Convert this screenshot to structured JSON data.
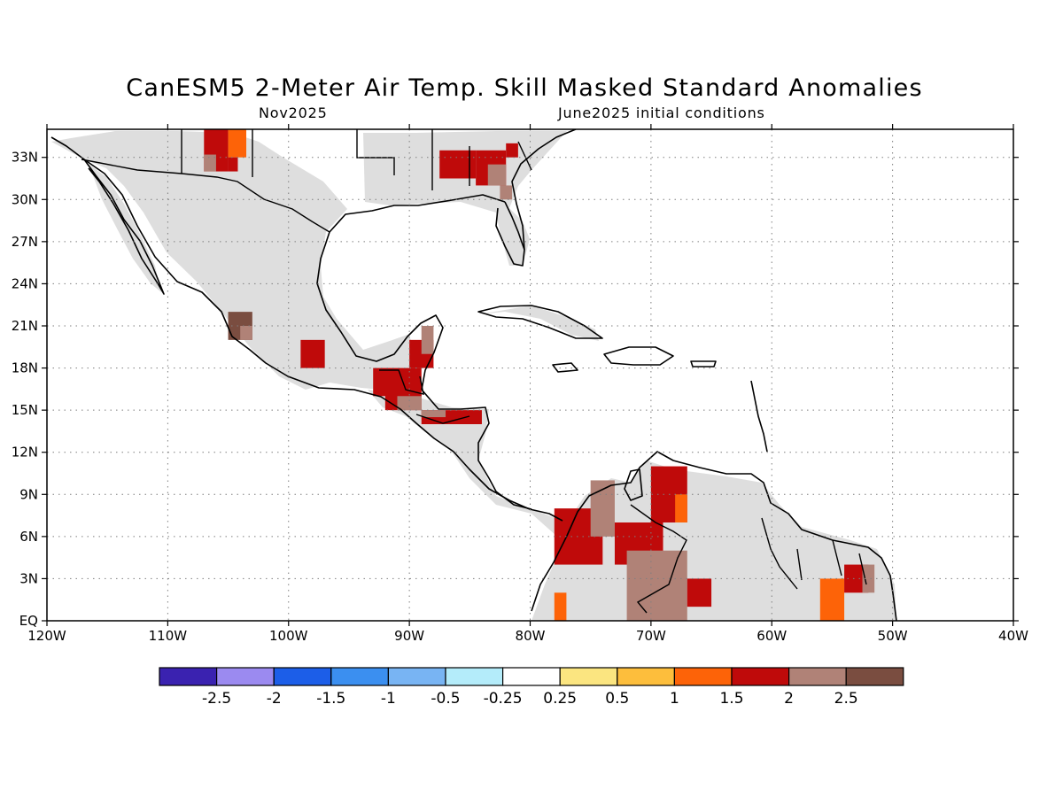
{
  "title": "CanESM5 2-Meter Air Temp. Skill Masked Standard Anomalies",
  "subtitle_left": "Nov2025",
  "subtitle_right": "June2025 initial conditions",
  "map": {
    "lon_range": [
      -120,
      -40
    ],
    "lat_range": [
      0,
      35
    ],
    "lat_ticks": [
      {
        "value": 33,
        "label": "33N"
      },
      {
        "value": 30,
        "label": "30N"
      },
      {
        "value": 27,
        "label": "27N"
      },
      {
        "value": 24,
        "label": "24N"
      },
      {
        "value": 21,
        "label": "21N"
      },
      {
        "value": 18,
        "label": "18N"
      },
      {
        "value": 15,
        "label": "15N"
      },
      {
        "value": 12,
        "label": "12N"
      },
      {
        "value": 9,
        "label": "9N"
      },
      {
        "value": 6,
        "label": "6N"
      },
      {
        "value": 3,
        "label": "3N"
      },
      {
        "value": 0,
        "label": "EQ"
      }
    ],
    "lon_ticks": [
      {
        "value": -120,
        "label": "120W"
      },
      {
        "value": -110,
        "label": "110W"
      },
      {
        "value": -100,
        "label": "100W"
      },
      {
        "value": -90,
        "label": "90W"
      },
      {
        "value": -80,
        "label": "80W"
      },
      {
        "value": -70,
        "label": "70W"
      },
      {
        "value": -60,
        "label": "60W"
      },
      {
        "value": -50,
        "label": "50W"
      },
      {
        "value": -40,
        "label": "40W"
      }
    ],
    "grid": "dotted",
    "land_masked_color": "#dedede"
  },
  "colorbar": {
    "colors": [
      "#3a22b0",
      "#9b8af0",
      "#1c5ee8",
      "#3b8ff0",
      "#78b4f3",
      "#b4ecfa",
      "#ffffff",
      "#fbe580",
      "#fdbe3c",
      "#fd6308",
      "#bf0a0a",
      "#b08277",
      "#7a4d40"
    ],
    "labels": [
      "-2.5",
      "-2",
      "-1.5",
      "-1",
      "-0.5",
      "-0.25",
      "0.25",
      "0.5",
      "1",
      "1.5",
      "2",
      "2.5"
    ]
  },
  "anomaly_cells": [
    {
      "lon0": -107.0,
      "lat0": 32.0,
      "lon1": -105.0,
      "lat1": 35.0,
      "level": "1.5"
    },
    {
      "lon0": -105.0,
      "lat0": 33.0,
      "lon1": -103.5,
      "lat1": 35.0,
      "level": "1"
    },
    {
      "lon0": -105.0,
      "lat0": 32.0,
      "lon1": -104.2,
      "lat1": 33.0,
      "level": "1.5"
    },
    {
      "lon0": -107.0,
      "lat0": 32.0,
      "lon1": -106.0,
      "lat1": 33.2,
      "level": "2"
    },
    {
      "lon0": -87.5,
      "lat0": 31.5,
      "lon1": -84.5,
      "lat1": 33.5,
      "level": "1.5"
    },
    {
      "lon0": -84.5,
      "lat0": 31.0,
      "lon1": -82.0,
      "lat1": 33.5,
      "level": "1.5"
    },
    {
      "lon0": -83.5,
      "lat0": 31.0,
      "lon1": -82.0,
      "lat1": 32.5,
      "level": "2"
    },
    {
      "lon0": -82.5,
      "lat0": 30.0,
      "lon1": -81.5,
      "lat1": 31.0,
      "level": "2"
    },
    {
      "lon0": -82.0,
      "lat0": 33.0,
      "lon1": -81.0,
      "lat1": 34.0,
      "level": "1.5"
    },
    {
      "lon0": -105.0,
      "lat0": 20.0,
      "lon1": -103.0,
      "lat1": 22.0,
      "level": "2.5"
    },
    {
      "lon0": -104.0,
      "lat0": 20.0,
      "lon1": -103.0,
      "lat1": 21.0,
      "level": "2"
    },
    {
      "lon0": -99.0,
      "lat0": 18.0,
      "lon1": -97.0,
      "lat1": 20.0,
      "level": "1.5"
    },
    {
      "lon0": -93.0,
      "lat0": 16.0,
      "lon1": -89.0,
      "lat1": 18.0,
      "level": "1.5"
    },
    {
      "lon0": -90.0,
      "lat0": 18.0,
      "lon1": -88.0,
      "lat1": 20.0,
      "level": "1.5"
    },
    {
      "lon0": -89.0,
      "lat0": 19.0,
      "lon1": -88.0,
      "lat1": 21.0,
      "level": "2"
    },
    {
      "lon0": -92.0,
      "lat0": 15.0,
      "lon1": -89.0,
      "lat1": 16.5,
      "level": "1.5"
    },
    {
      "lon0": -91.0,
      "lat0": 15.0,
      "lon1": -89.0,
      "lat1": 16.0,
      "level": "2"
    },
    {
      "lon0": -89.0,
      "lat0": 14.0,
      "lon1": -84.0,
      "lat1": 15.0,
      "level": "1.5"
    },
    {
      "lon0": -89.0,
      "lat0": 14.5,
      "lon1": -87.0,
      "lat1": 15.0,
      "level": "2"
    },
    {
      "lon0": -78.0,
      "lat0": 4.0,
      "lon1": -74.0,
      "lat1": 8.0,
      "level": "1.5"
    },
    {
      "lon0": -75.0,
      "lat0": 6.0,
      "lon1": -73.0,
      "lat1": 10.0,
      "level": "2"
    },
    {
      "lon0": -73.0,
      "lat0": 4.0,
      "lon1": -69.0,
      "lat1": 7.0,
      "level": "1.5"
    },
    {
      "lon0": -72.0,
      "lat0": 0.0,
      "lon1": -67.0,
      "lat1": 5.0,
      "level": "2"
    },
    {
      "lon0": -67.0,
      "lat0": 1.0,
      "lon1": -65.0,
      "lat1": 3.0,
      "level": "1.5"
    },
    {
      "lon0": -70.0,
      "lat0": 7.0,
      "lon1": -67.0,
      "lat1": 11.0,
      "level": "1.5"
    },
    {
      "lon0": -68.0,
      "lat0": 7.0,
      "lon1": -67.0,
      "lat1": 9.0,
      "level": "1"
    },
    {
      "lon0": -78.0,
      "lat0": 0.0,
      "lon1": -77.0,
      "lat1": 2.0,
      "level": "1"
    },
    {
      "lon0": -56.0,
      "lat0": 0.0,
      "lon1": -54.0,
      "lat1": 3.0,
      "level": "1"
    },
    {
      "lon0": -54.0,
      "lat0": 2.0,
      "lon1": -52.0,
      "lat1": 4.0,
      "level": "1.5"
    },
    {
      "lon0": -52.5,
      "lat0": 2.0,
      "lon1": -51.5,
      "lat1": 4.0,
      "level": "2"
    }
  ]
}
